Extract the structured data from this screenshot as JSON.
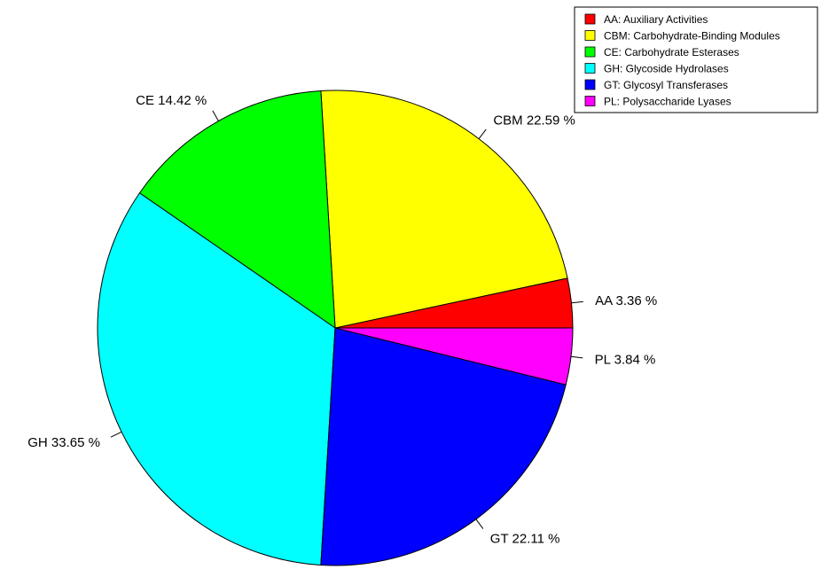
{
  "chart_data": {
    "type": "pie",
    "start_angle_deg": 0,
    "direction": "counterclockwise",
    "slices": [
      {
        "key": "AA",
        "label": "AA  3.36 %",
        "value": 3.36,
        "color": "#ff0000",
        "legend": "AA: Auxiliary Activities"
      },
      {
        "key": "CBM",
        "label": "CBM  22.59 %",
        "value": 22.59,
        "color": "#ffff00",
        "legend": "CBM: Carbohydrate-Binding Modules"
      },
      {
        "key": "CE",
        "label": "CE  14.42 %",
        "value": 14.42,
        "color": "#00ff00",
        "legend": "CE: Carbohydrate Esterases"
      },
      {
        "key": "GH",
        "label": "GH  33.65 %",
        "value": 33.65,
        "color": "#00ffff",
        "legend": "GH: Glycoside Hydrolases"
      },
      {
        "key": "GT",
        "label": "GT  22.11 %",
        "value": 22.11,
        "color": "#0000ff",
        "legend": "GT: Glycosyl Transferases"
      },
      {
        "key": "PL",
        "label": "PL  3.84 %",
        "value": 3.84,
        "color": "#ff00ff",
        "legend": "PL: Polysaccharide Lyases"
      }
    ],
    "legend_position": "top-right"
  }
}
